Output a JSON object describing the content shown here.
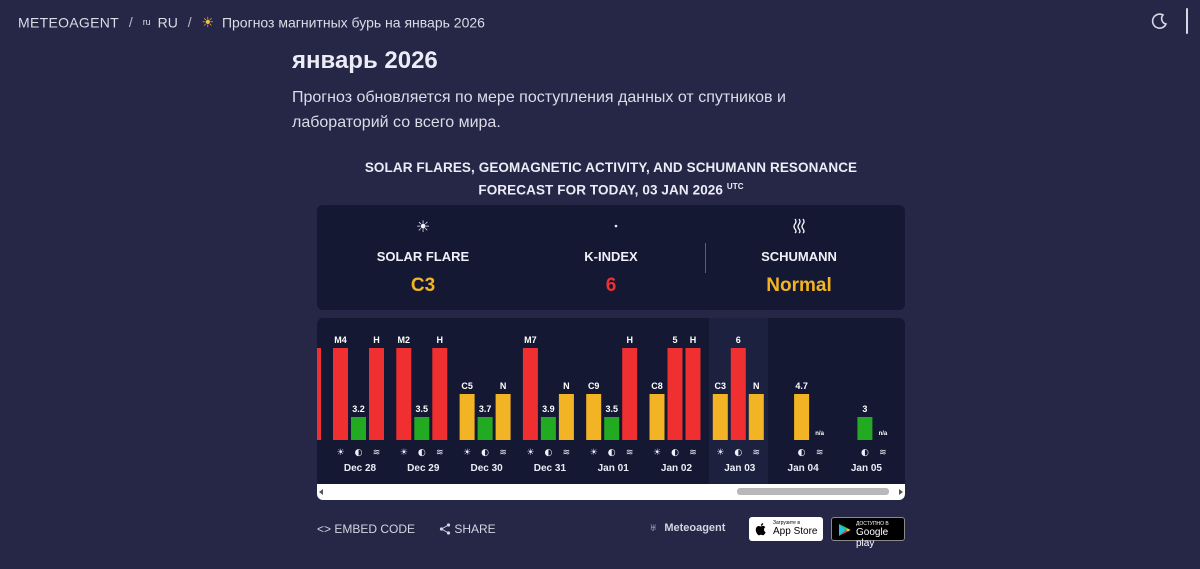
{
  "breadcrumb": {
    "brand": "METEOAGENT",
    "lang_small": "ru",
    "lang": "RU",
    "page": "Прогноз магнитных бурь на январь 2026"
  },
  "header": {
    "title": "январь 2026",
    "subtitle": "Прогноз обновляется по мере поступления данных от спутников и лабораторий со всего мира."
  },
  "widget": {
    "title_line1": "SOLAR FLARES, GEOMAGNETIC ACTIVITY, AND SCHUMANN RESONANCE",
    "title_line2": "FORECAST FOR TODAY, 03 JAN 2026",
    "title_sup": "UTC"
  },
  "stats": [
    {
      "label": "SOLAR FLARE",
      "value": "C3",
      "color": "#f2b424",
      "icon": "sun-icon"
    },
    {
      "label": "K-INDEX",
      "value": "6",
      "color": "#f03030",
      "icon": "moon-icon"
    },
    {
      "label": "SCHUMANN",
      "value": "Normal",
      "color": "#f2b424",
      "icon": "wave-icon"
    }
  ],
  "colors": {
    "red": "#f03030",
    "green": "#22aa22",
    "yellow": "#f2b424",
    "panel": "#141833",
    "background": "#262646"
  },
  "chart_data": {
    "type": "bar",
    "days": [
      {
        "date": "Dec 28",
        "flare": "M4",
        "kindex": "3.2",
        "schumann": "H"
      },
      {
        "date": "Dec 29",
        "flare": "M2",
        "kindex": "3.5",
        "schumann": "H"
      },
      {
        "date": "Dec 30",
        "flare": "C5",
        "kindex": "3.7",
        "schumann": "N"
      },
      {
        "date": "Dec 31",
        "flare": "M7",
        "kindex": "3.9",
        "schumann": "N"
      },
      {
        "date": "Jan 01",
        "flare": "C9",
        "kindex": "3.5",
        "schumann": "H"
      },
      {
        "date": "Jan 02",
        "flare": "C8",
        "kindex": "5",
        "schumann": "H"
      },
      {
        "date": "Jan 03",
        "flare": "C3",
        "kindex": "6",
        "schumann": "N"
      },
      {
        "date": "Jan 04",
        "flare": "",
        "kindex": "4.7",
        "schumann": "n/a"
      },
      {
        "date": "Jan 05",
        "flare": "",
        "kindex": "3",
        "schumann": "n/a"
      }
    ],
    "bar_levels": [
      [
        1,
        0.25,
        1
      ],
      [
        1,
        0.25,
        1
      ],
      [
        0.5,
        0.25,
        0.5
      ],
      [
        1,
        0.25,
        0.5
      ],
      [
        0.5,
        0.25,
        1
      ],
      [
        0.5,
        1,
        1
      ],
      [
        0.5,
        1,
        0.5
      ],
      [
        null,
        0.5,
        0
      ],
      [
        null,
        0.25,
        0
      ]
    ],
    "bar_colors": [
      [
        "#f03030",
        "#22aa22",
        "#f03030"
      ],
      [
        "#f03030",
        "#22aa22",
        "#f03030"
      ],
      [
        "#f2b424",
        "#22aa22",
        "#f2b424"
      ],
      [
        "#f03030",
        "#22aa22",
        "#f2b424"
      ],
      [
        "#f2b424",
        "#22aa22",
        "#f03030"
      ],
      [
        "#f2b424",
        "#f03030",
        "#f03030"
      ],
      [
        "#f2b424",
        "#f03030",
        "#f2b424"
      ],
      [
        null,
        "#f2b424",
        null
      ],
      [
        null,
        "#22aa22",
        null
      ]
    ]
  },
  "footer": {
    "embed": "EMBED CODE",
    "share": "SHARE",
    "meteoagent": "Meteoagent",
    "appstore_small": "Загрузите в",
    "appstore_big": "App Store",
    "gplay_small": "ДОСТУПНО В",
    "gplay_big": "Google play"
  }
}
